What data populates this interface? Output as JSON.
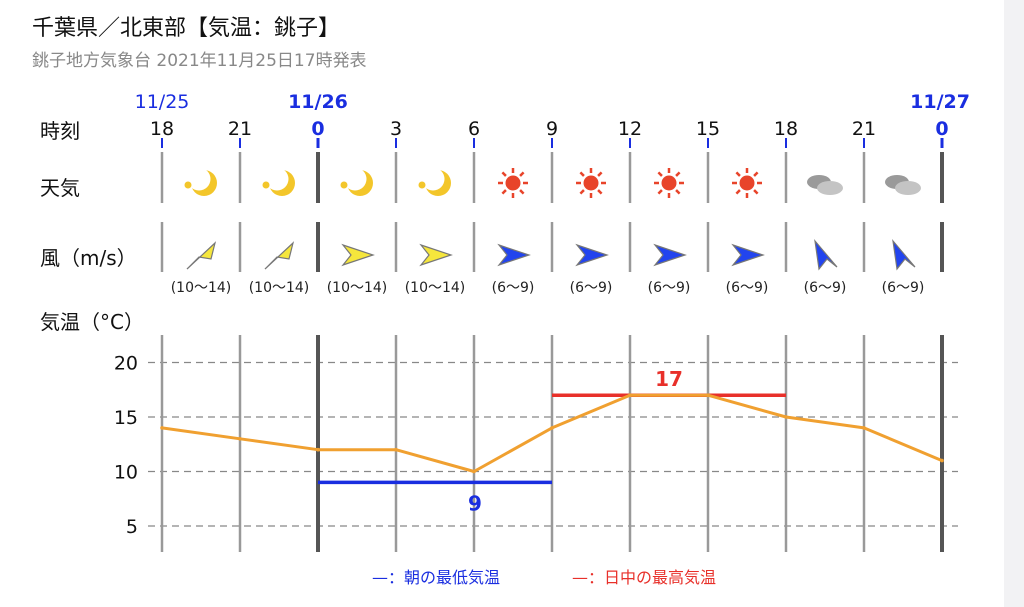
{
  "header": {
    "title": "千葉県／北東部【気温：銚子】",
    "subtitle": "銚子地方気象台 2021年11月25日17時発表"
  },
  "rows": {
    "time_label": "時刻",
    "weather_label": "天気",
    "wind_label": "風（m/s）",
    "temp_label": "気温（°C）"
  },
  "dates": [
    {
      "label": "11/25",
      "slot": 0,
      "bold": false
    },
    {
      "label": "11/26",
      "slot": 2,
      "bold": true
    },
    {
      "label": "11/27",
      "slot": 10,
      "bold": true
    }
  ],
  "hours": [
    "18",
    "21",
    "0",
    "3",
    "6",
    "9",
    "12",
    "15",
    "18",
    "21",
    "0"
  ],
  "midnight_slots": [
    2,
    10
  ],
  "weather": [
    "moon-icon",
    "moon-icon",
    "moon-icon",
    "moon-icon",
    "sun-icon",
    "sun-icon",
    "sun-icon",
    "sun-icon",
    "cloud-icon",
    "cloud-icon"
  ],
  "wind": [
    {
      "dir": "southwest",
      "speed": "(10〜14)",
      "color": "#f5e63c"
    },
    {
      "dir": "southwest",
      "speed": "(10〜14)",
      "color": "#f5e63c"
    },
    {
      "dir": "west",
      "speed": "(10〜14)",
      "color": "#f5e63c"
    },
    {
      "dir": "west",
      "speed": "(10〜14)",
      "color": "#f5e63c"
    },
    {
      "dir": "west",
      "speed": "(6〜9)",
      "color": "#2244ee"
    },
    {
      "dir": "west",
      "speed": "(6〜9)",
      "color": "#2244ee"
    },
    {
      "dir": "west",
      "speed": "(6〜9)",
      "color": "#2244ee"
    },
    {
      "dir": "west",
      "speed": "(6〜9)",
      "color": "#2244ee"
    },
    {
      "dir": "northwest",
      "speed": "(6〜9)",
      "color": "#2244ee"
    },
    {
      "dir": "northwest",
      "speed": "(6〜9)",
      "color": "#2244ee"
    }
  ],
  "chart_data": {
    "type": "line",
    "x": [
      "18",
      "21",
      "0",
      "3",
      "6",
      "9",
      "12",
      "15",
      "18",
      "21",
      "0"
    ],
    "series": [
      {
        "values": [
          14,
          13,
          12,
          12,
          10,
          14,
          17,
          17,
          15,
          14,
          11
        ],
        "color": "#f0a030"
      }
    ],
    "min_temp": {
      "value": 9,
      "label": "9",
      "from_slot": 2,
      "to_slot": 5,
      "color": "#1a2ee0"
    },
    "max_temp": {
      "value": 17,
      "label": "17",
      "from_slot": 5,
      "to_slot": 8,
      "color": "#e8302a"
    },
    "yticks": [
      5,
      10,
      15,
      20
    ],
    "ylim": [
      2.5,
      22.5
    ],
    "grid": true
  },
  "legend": {
    "min_label": "—：朝の最低気温",
    "max_label": "—：日中の最高気温",
    "min_color": "#1a2ee0",
    "max_color": "#e8302a"
  }
}
